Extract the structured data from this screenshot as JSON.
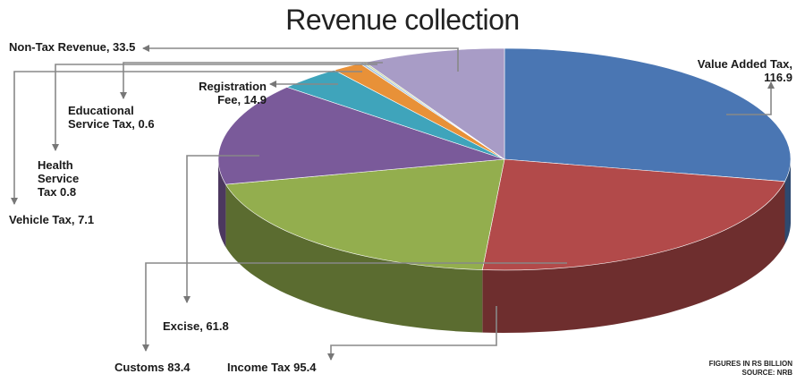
{
  "chart_data": {
    "type": "pie",
    "title": "Revenue collection",
    "unit_note": "FIGURES IN RS BILLION",
    "source_note": "SOURCE: NRB",
    "slices": [
      {
        "name": "Value Added Tax",
        "value": 116.9,
        "label": "Value Added Tax, 116.9",
        "color": "#4a76b3"
      },
      {
        "name": "Income Tax",
        "value": 95.4,
        "label": "Income Tax 95.4",
        "color": "#b24a4a"
      },
      {
        "name": "Customs",
        "value": 83.4,
        "label": "Customs 83.4",
        "color": "#93ae4e"
      },
      {
        "name": "Excise",
        "value": 61.8,
        "label": "Excise, 61.8",
        "color": "#7a5a9a"
      },
      {
        "name": "Registration Fee",
        "value": 14.9,
        "label": "Registration Fee, 14.9",
        "color": "#3fa4bb"
      },
      {
        "name": "Vehicle Tax",
        "value": 7.1,
        "label": "Vehicle Tax, 7.1",
        "color": "#e89138"
      },
      {
        "name": "Health Service Tax",
        "value": 0.8,
        "label": "Health Service Tax 0.8",
        "color": "#a8c4e0"
      },
      {
        "name": "Educational Service Tax",
        "value": 0.6,
        "label": "Educational Service Tax, 0.6",
        "color": "#c9d9a3"
      },
      {
        "name": "Non-Tax Revenue",
        "value": 33.5,
        "label": "Non-Tax Revenue, 33.5",
        "color": "#a89cc6"
      }
    ]
  },
  "labels": {
    "vat_line1": "Value Added Tax,",
    "vat_line2": "116.9",
    "income": "Income Tax 95.4",
    "customs": "Customs 83.4",
    "excise": "Excise, 61.8",
    "reg_line1": "Registration",
    "reg_line2": "Fee, 14.9",
    "vehicle": "Vehicle Tax, 7.1",
    "health_line1": "Health",
    "health_line2": "Service",
    "health_line3": "Tax 0.8",
    "edu_line1": "Educational",
    "edu_line2": "Service Tax, 0.6",
    "nontax": "Non-Tax Revenue, 33.5"
  }
}
